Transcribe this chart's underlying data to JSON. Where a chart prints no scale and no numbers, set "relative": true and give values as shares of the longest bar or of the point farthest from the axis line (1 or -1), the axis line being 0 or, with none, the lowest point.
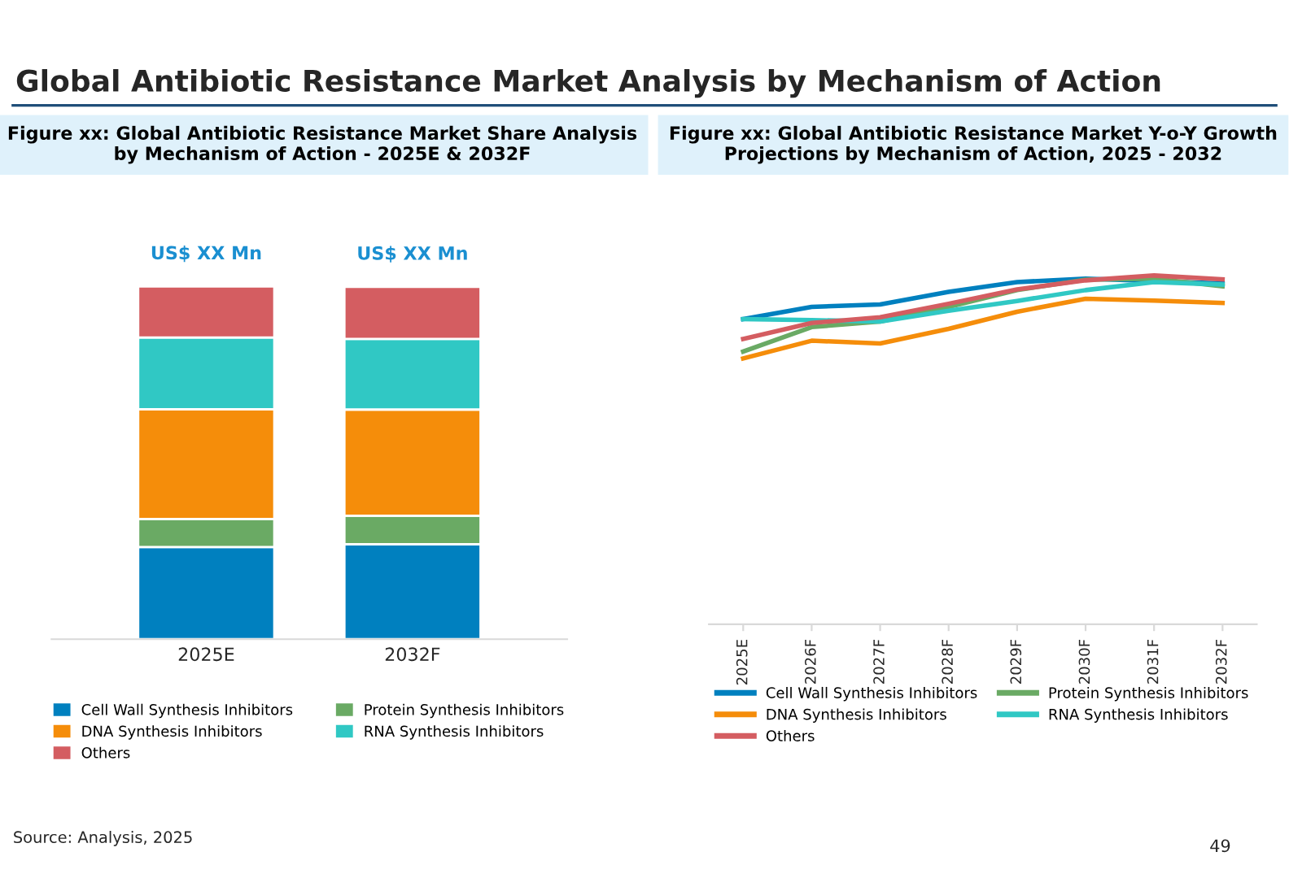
{
  "chart_data": [
    {
      "type": "bar",
      "title": "Figure xx: Global Antibiotic Resistance Market Share Analysis by Mechanism of Action - 2025E & 2032F",
      "categories": [
        "2025E",
        "2032F"
      ],
      "stacked": true,
      "relative": true,
      "legend": "bottom",
      "grid": false,
      "series": [
        {
          "name": "Cell Wall Synthesis Inhibitors",
          "color": "#0080bf",
          "values": [
            0.261,
            0.269
          ]
        },
        {
          "name": "Protein Synthesis Inhibitors",
          "color": "#6aaa64",
          "values": [
            0.08,
            0.081
          ]
        },
        {
          "name": "DNA Synthesis Inhibitors",
          "color": "#f58d0a",
          "values": [
            0.311,
            0.301
          ]
        },
        {
          "name": "RNA Synthesis Inhibitors",
          "color": "#30c8c4",
          "values": [
            0.203,
            0.2
          ]
        },
        {
          "name": "Others",
          "color": "#d45d61",
          "values": [
            0.145,
            0.148
          ]
        }
      ],
      "annotations": [
        "Global Antibiotic Resistance Market Analysis by Mechanism of Action",
        "Source: Analysis, 2025",
        "49",
        "US$ XX Mn",
        "US$ XX Mn"
      ]
    },
    {
      "type": "line",
      "title": "Figure xx: Global Antibiotic Resistance Market Y-o-Y Growth Projections by Mechanism of Action, 2025 - 2032",
      "categories": [
        "2025E",
        "2026F",
        "2027F",
        "2028F",
        "2029F",
        "2030F",
        "2031F",
        "2032F"
      ],
      "relative": true,
      "legend": "bottom",
      "grid": false,
      "marker": "none",
      "line_style": "solid",
      "series": [
        {
          "name": "Cell Wall Synthesis Inhibitors",
          "color": "#0080bf",
          "values": [
            0.875,
            0.91,
            0.917,
            0.953,
            0.981,
            0.991,
            0.984,
            0.977
          ]
        },
        {
          "name": "Protein Synthesis Inhibitors",
          "color": "#6aaa64",
          "values": [
            0.782,
            0.852,
            0.868,
            0.91,
            0.958,
            0.988,
            0.991,
            0.969
          ]
        },
        {
          "name": "DNA Synthesis Inhibitors",
          "color": "#f58d0a",
          "values": [
            0.762,
            0.813,
            0.805,
            0.847,
            0.896,
            0.933,
            0.928,
            0.921
          ]
        },
        {
          "name": "RNA Synthesis Inhibitors",
          "color": "#30c8c4",
          "values": [
            0.875,
            0.872,
            0.868,
            0.899,
            0.927,
            0.958,
            0.981,
            0.974
          ]
        },
        {
          "name": "Others",
          "color": "#d45d61",
          "values": [
            0.818,
            0.864,
            0.88,
            0.919,
            0.96,
            0.986,
            1.0,
            0.989
          ]
        }
      ]
    }
  ]
}
